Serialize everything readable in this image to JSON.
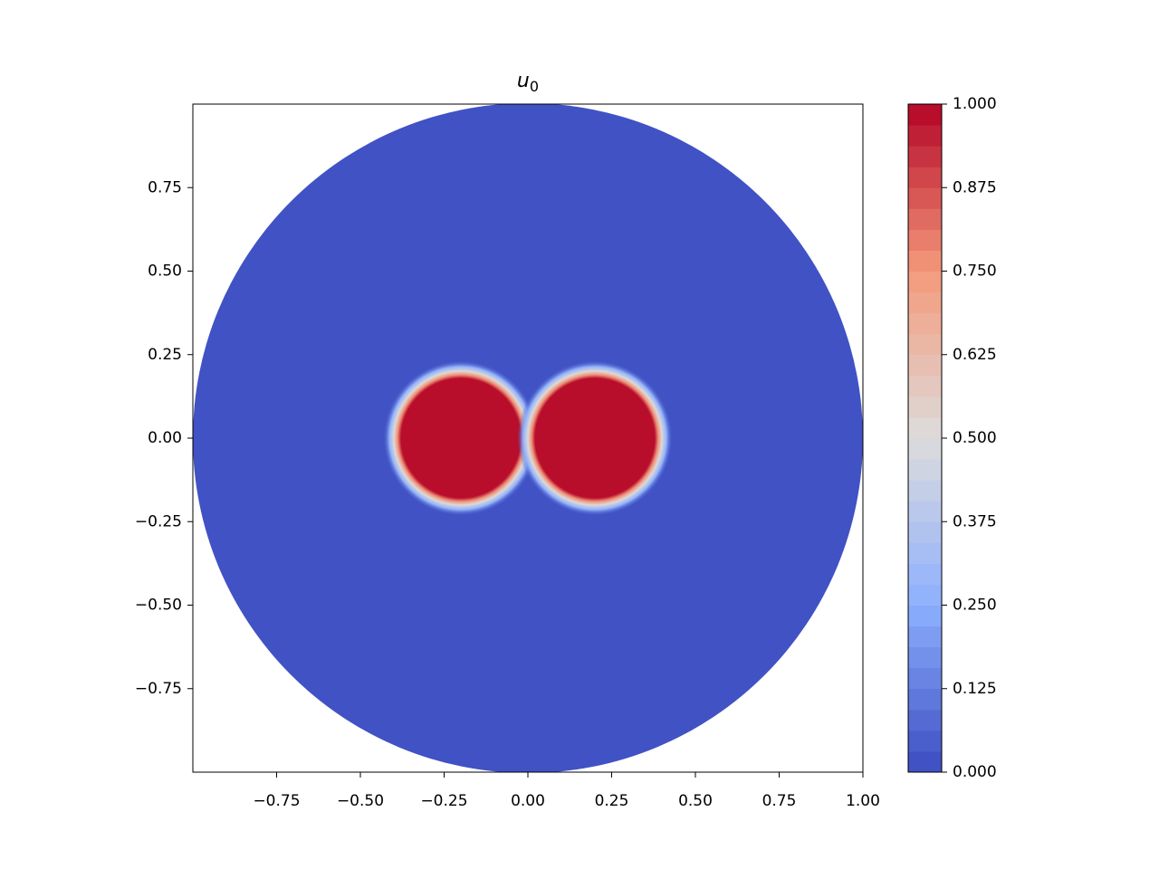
{
  "chart_data": {
    "type": "contour",
    "title": "u",
    "title_subscript": "0",
    "xlim": [
      -1,
      1
    ],
    "ylim": [
      -1,
      1
    ],
    "xticks": [
      {
        "value": -0.75,
        "label": "−0.75"
      },
      {
        "value": -0.5,
        "label": "−0.50"
      },
      {
        "value": -0.25,
        "label": "−0.25"
      },
      {
        "value": 0,
        "label": "0.00"
      },
      {
        "value": 0.25,
        "label": "0.25"
      },
      {
        "value": 0.5,
        "label": "0.50"
      },
      {
        "value": 0.75,
        "label": "0.75"
      },
      {
        "value": 1,
        "label": "1.00"
      }
    ],
    "yticks": [
      {
        "value": -0.75,
        "label": "−0.75"
      },
      {
        "value": -0.5,
        "label": "−0.50"
      },
      {
        "value": -0.25,
        "label": "−0.25"
      },
      {
        "value": 0,
        "label": "0.00"
      },
      {
        "value": 0.25,
        "label": "0.25"
      },
      {
        "value": 0.5,
        "label": "0.50"
      },
      {
        "value": 0.75,
        "label": "0.75"
      }
    ],
    "domain": {
      "cx": 0,
      "cy": 0,
      "r": 1,
      "value": 0
    },
    "blobs": [
      {
        "cx": -0.2,
        "cy": 0,
        "r": 0.2,
        "value": 1
      },
      {
        "cx": 0.2,
        "cy": 0,
        "r": 0.2,
        "value": 1
      }
    ],
    "colormap": [
      "#3b4cc0",
      "#8db0fe",
      "#dddcdc",
      "#f49a7b",
      "#b40426"
    ],
    "levels": 32,
    "clim": [
      0,
      1
    ],
    "cticks": [
      {
        "value": 0,
        "label": "0.000"
      },
      {
        "value": 0.125,
        "label": "0.125"
      },
      {
        "value": 0.25,
        "label": "0.250"
      },
      {
        "value": 0.375,
        "label": "0.375"
      },
      {
        "value": 0.5,
        "label": "0.500"
      },
      {
        "value": 0.625,
        "label": "0.625"
      },
      {
        "value": 0.75,
        "label": "0.750"
      },
      {
        "value": 0.875,
        "label": "0.875"
      },
      {
        "value": 1,
        "label": "1.000"
      }
    ]
  }
}
